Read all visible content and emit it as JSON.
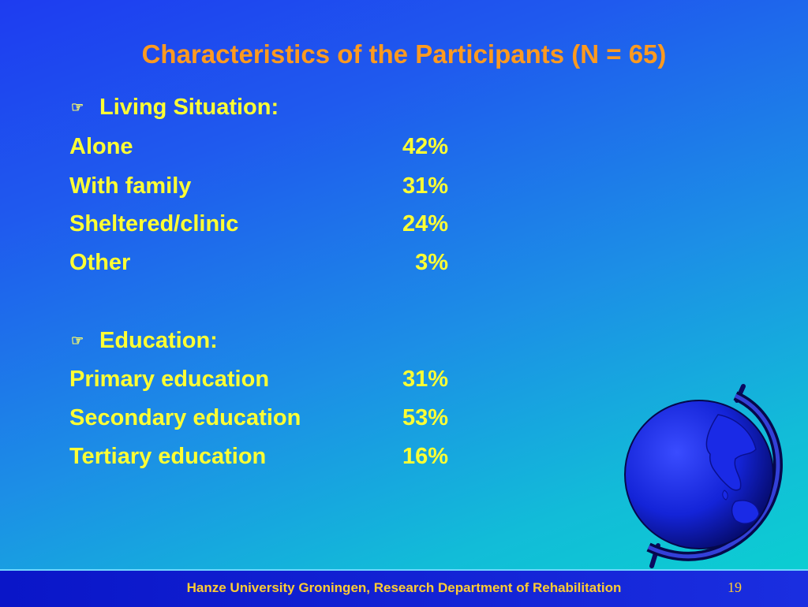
{
  "title": "Characteristics of the Participants (N = 65)",
  "sections": [
    {
      "heading": "Living Situation:",
      "rows": [
        {
          "label": "Alone",
          "value": "42%"
        },
        {
          "label": "With family",
          "value": "31%"
        },
        {
          "label": "Sheltered/clinic",
          "value": "24%"
        },
        {
          "label": "Other",
          "value": "3%"
        }
      ]
    },
    {
      "heading": "Education:",
      "rows": [
        {
          "label": "Primary education",
          "value": "31%"
        },
        {
          "label": "Secondary education",
          "value": "53%"
        },
        {
          "label": "Tertiary education",
          "value": "16%"
        }
      ]
    }
  ],
  "footer": {
    "text": "Hanze University Groningen, Research Department of Rehabilitation",
    "page_number": "19"
  },
  "icons": {
    "bullet": "pointing-hand-icon",
    "decoration": "globe-icon"
  },
  "colors": {
    "title": "#ff9a1f",
    "body_text": "#ffff33",
    "footer_text": "#ffcc33",
    "footer_bar": "#0a16c8"
  }
}
